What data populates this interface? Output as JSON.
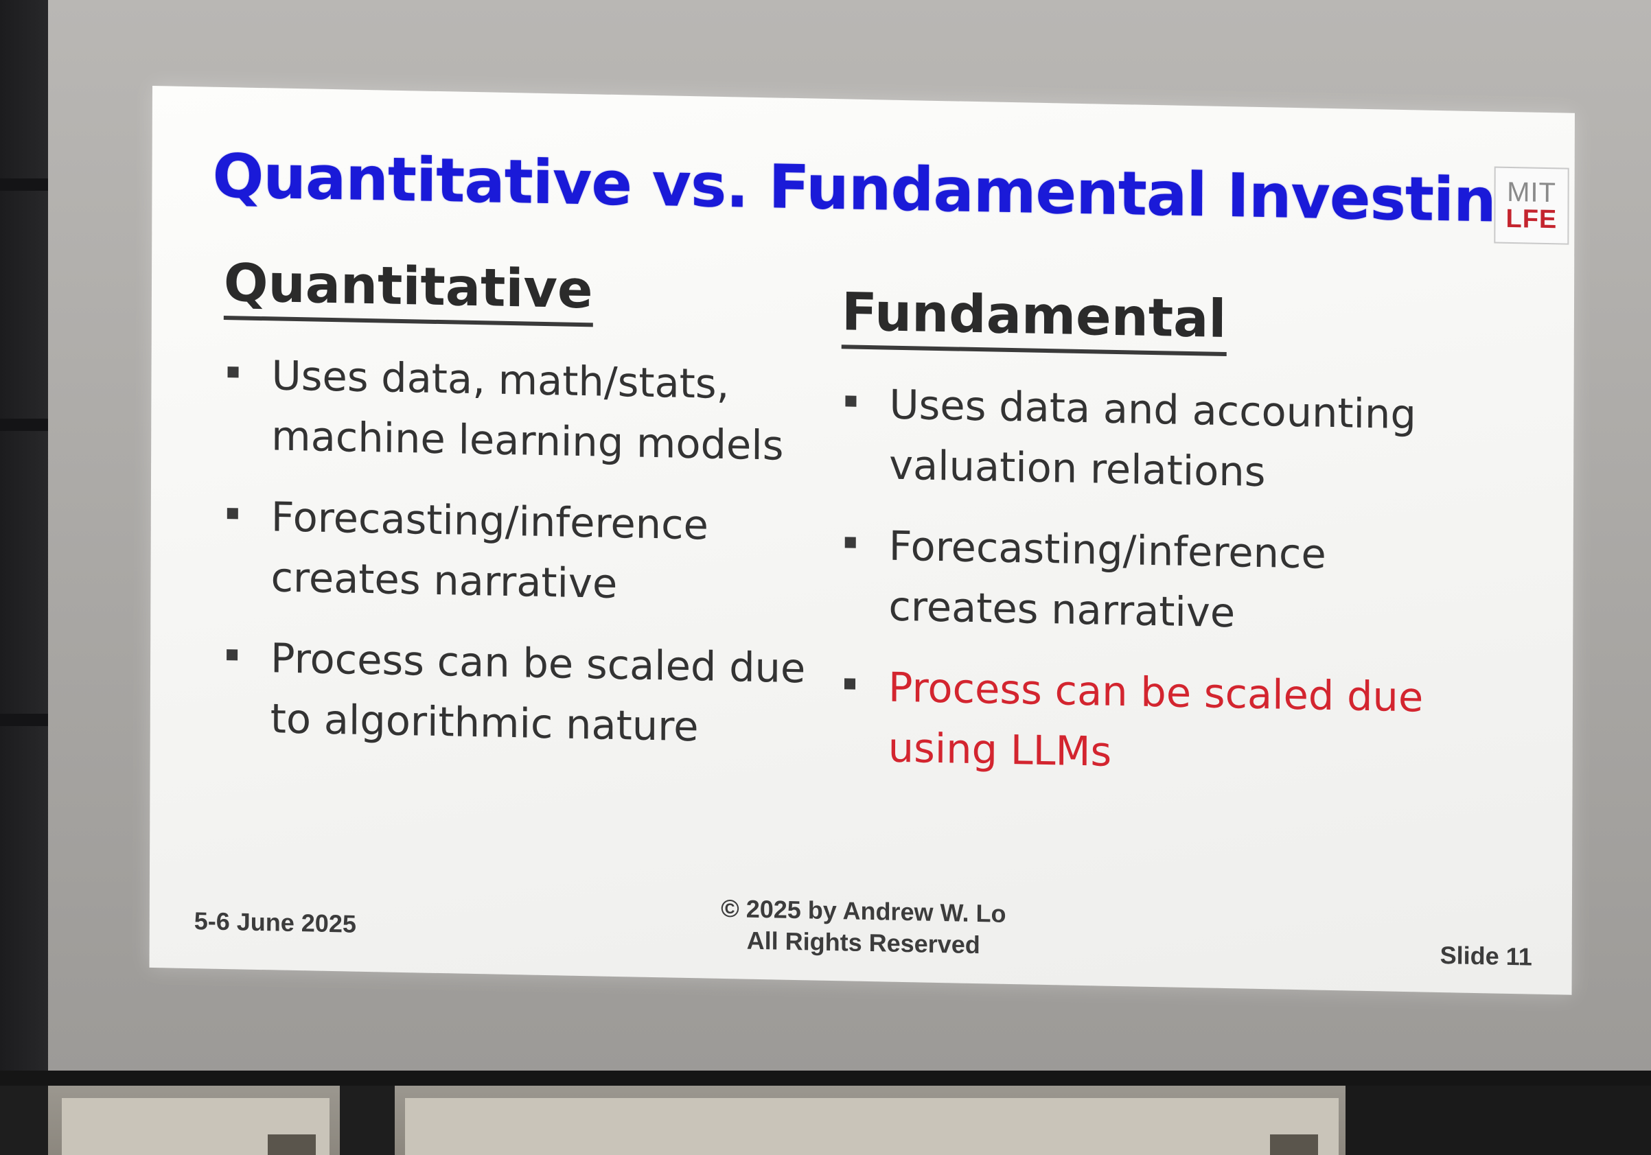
{
  "slide": {
    "title": "Quantitative vs. Fundamental Investing",
    "logo": {
      "line1": "MIT",
      "line2": "LFE"
    },
    "left_column": {
      "heading": "Quantitative",
      "bullets": [
        {
          "lines": [
            "Uses data, math/stats,",
            "machine learning models"
          ],
          "highlight": false
        },
        {
          "lines": [
            "Forecasting/inference",
            "creates narrative"
          ],
          "highlight": false
        },
        {
          "lines": [
            "Process can be scaled due",
            "to algorithmic nature"
          ],
          "highlight": false
        }
      ]
    },
    "right_column": {
      "heading": "Fundamental",
      "bullets": [
        {
          "lines": [
            "Uses data and accounting",
            "valuation relations"
          ],
          "highlight": false
        },
        {
          "lines": [
            "Forecasting/inference",
            "creates narrative"
          ],
          "highlight": false
        },
        {
          "lines": [
            "Process can be scaled due",
            "using LLMs"
          ],
          "highlight": true
        }
      ]
    },
    "footer": {
      "date": "5-6 June 2025",
      "copyright_line1": "© 2025 by Andrew W. Lo",
      "copyright_line2": "All Rights Reserved",
      "slide_number": "Slide 11"
    }
  },
  "colors": {
    "title": "#1a1ad8",
    "body_text": "#333333",
    "highlight_text": "#d3252f",
    "logo_red": "#c4242e"
  }
}
